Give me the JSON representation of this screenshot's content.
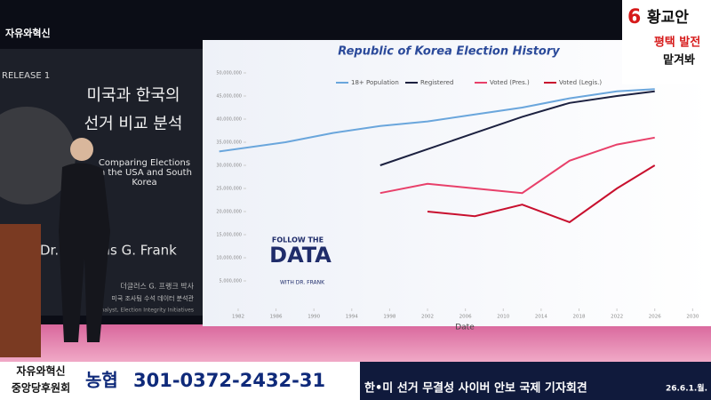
{
  "broadcast": {
    "logo": "자유와혁신",
    "candidate_number": "6",
    "candidate_name": "황교안",
    "slogan_1": "평택 발전",
    "slogan_2": "맡겨봐",
    "book_release": "RELEASE 1",
    "book_title_1": "미국과 한국의",
    "book_title_2": "선거 비교 분석",
    "book_subtitle": "Comparing Elections in the USA and South Korea",
    "book_author": "Dr. Douglas G. Frank",
    "book_author_ko": "더글러스 G. 프랭크 박사",
    "book_author_desc": "미국 조사팀 수석 데이터 분석관",
    "book_footer": "Analyst, Election Integrity Initiatives",
    "watermark_1": "FOLLOW THE",
    "watermark_2": "DATA",
    "watermark_3": "WITH DR. FRANK",
    "sponsor_1": "자유와혁신",
    "sponsor_2": "중앙당후원회",
    "bank": "농협",
    "account": "301-0372-2432-31",
    "event": "한•미 선거 무결성 사이버 안보 국제 기자회견",
    "date": "26.6.1.월."
  },
  "chart_data": {
    "type": "line",
    "title": "Republic of Korea Election History",
    "x_label": "Date",
    "x": [
      1980,
      1987,
      1992,
      1997,
      2002,
      2007,
      2012,
      2017,
      2022,
      2026
    ],
    "series": [
      {
        "name": "18+ Population",
        "color": "#6aa6dc",
        "values": [
          33000000,
          35000000,
          37000000,
          38500000,
          39500000,
          41000000,
          42500000,
          44500000,
          46000000,
          46500000
        ]
      },
      {
        "name": "Registered",
        "color": "#1c2140",
        "values": [
          null,
          null,
          null,
          30000000,
          33500000,
          37000000,
          40500000,
          43500000,
          45000000,
          46000000
        ]
      },
      {
        "name": "Voted (Pres.)",
        "color": "#e8406a",
        "values": [
          null,
          null,
          null,
          24000000,
          26000000,
          25000000,
          24000000,
          31000000,
          34500000,
          36000000
        ]
      },
      {
        "name": "Voted (Legis.)",
        "color": "#c8102e",
        "values": [
          null,
          null,
          null,
          null,
          20000000,
          19000000,
          21500000,
          17700000,
          25000000,
          30000000
        ]
      }
    ],
    "xlim": [
      1979,
      2031
    ],
    "xticks": [
      1982,
      1986,
      1990,
      1994,
      1998,
      2002,
      2006,
      2010,
      2014,
      2018,
      2022,
      2026,
      2030
    ],
    "ylim": [
      0,
      50000000
    ],
    "yticks": [
      {
        "value": 5000000,
        "label": "5,000,000"
      },
      {
        "value": 10000000,
        "label": "10,000,000"
      },
      {
        "value": 15000000,
        "label": "15,000,000"
      },
      {
        "value": 20000000,
        "label": "20,000,000"
      },
      {
        "value": 25000000,
        "label": "25,000,000"
      },
      {
        "value": 30000000,
        "label": "30,000,000"
      },
      {
        "value": 35000000,
        "label": "35,000,000"
      },
      {
        "value": 40000000,
        "label": "40,000,000"
      },
      {
        "value": 45000000,
        "label": "45,000,000"
      },
      {
        "value": 50000000,
        "label": "50,000,000"
      }
    ],
    "grid": false
  }
}
